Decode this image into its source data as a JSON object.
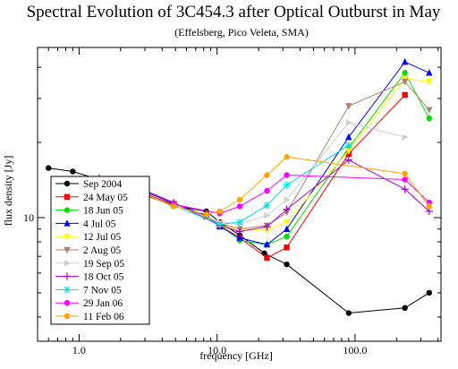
{
  "chart_data": {
    "type": "line",
    "title": "Spectral Evolution of 3C454.3 after Optical Outburst in May",
    "subtitle": "(Effelsberg, Pico Veleta, SMA)",
    "xlabel": "frequency [GHz]",
    "ylabel": "flux density [Jy]",
    "x_scale": "log",
    "y_scale": "log",
    "xlim": [
      0.5,
      420
    ],
    "ylim": [
      3.2,
      48
    ],
    "x_ticks": [
      {
        "value": 1.0,
        "label": "1.0"
      },
      {
        "value": 10.0,
        "label": "10.0"
      },
      {
        "value": 100.0,
        "label": "100.0"
      }
    ],
    "y_ticks": [
      {
        "value": 10,
        "label": "10"
      }
    ],
    "grid": false,
    "legend_position": "bottom-left",
    "series": [
      {
        "name": "Sep 2004",
        "color": "#000000",
        "marker": "circle",
        "points": [
          [
            0.6,
            15.8
          ],
          [
            0.9,
            15.3
          ],
          [
            1.4,
            14.2
          ],
          [
            1.6,
            13.4
          ],
          [
            2.6,
            12.6
          ],
          [
            4.85,
            11.2
          ],
          [
            8.35,
            10.6
          ],
          [
            10.45,
            9.6
          ],
          [
            14.6,
            8.5
          ],
          [
            22,
            7.2
          ],
          [
            32,
            6.5
          ],
          [
            90,
            4.15
          ],
          [
            230,
            4.35
          ],
          [
            345,
            5.0
          ]
        ]
      },
      {
        "name": "24 May 05",
        "color": "#ff0000",
        "marker": "square",
        "points": [
          [
            1.4,
            14.3
          ],
          [
            1.65,
            13.7
          ],
          [
            2.65,
            12.8
          ],
          [
            4.85,
            11.3
          ],
          [
            8.35,
            10.1
          ],
          [
            10.45,
            9.3
          ],
          [
            14.6,
            8.3
          ],
          [
            23,
            6.9
          ],
          [
            32,
            7.6
          ],
          [
            90,
            18.0
          ],
          [
            230,
            31.0
          ]
        ]
      },
      {
        "name": "18 Jun 05",
        "color": "#00dd00",
        "marker": "circle",
        "points": [
          [
            4.85,
            11.3
          ],
          [
            8.35,
            10.2
          ],
          [
            10.45,
            9.4
          ],
          [
            14.6,
            8.1
          ],
          [
            23,
            7.8
          ],
          [
            32,
            8.4
          ],
          [
            90,
            19.0
          ],
          [
            230,
            38.0
          ],
          [
            345,
            25.0
          ]
        ]
      },
      {
        "name": "4 Jul 05",
        "color": "#0000ff",
        "marker": "triangle-up",
        "points": [
          [
            1.4,
            14.1
          ],
          [
            2.65,
            13.1
          ],
          [
            4.85,
            11.4
          ],
          [
            8.35,
            10.2
          ],
          [
            10.45,
            9.2
          ],
          [
            14.6,
            8.3
          ],
          [
            23,
            7.8
          ],
          [
            32,
            9.0
          ],
          [
            90,
            21.0
          ],
          [
            230,
            42.0
          ],
          [
            345,
            38.0
          ]
        ]
      },
      {
        "name": "12 Jul 05",
        "color": "#ffff00",
        "marker": "triangle-down",
        "points": [
          [
            4.85,
            11.4
          ],
          [
            10.45,
            9.3
          ],
          [
            14.6,
            9.0
          ],
          [
            23,
            8.9
          ],
          [
            32,
            9.6
          ],
          [
            90,
            18.5
          ],
          [
            230,
            36.0
          ],
          [
            345,
            35.0
          ]
        ]
      },
      {
        "name": "2 Aug 05",
        "color": "#b08070",
        "marker": "triangle-down",
        "points": [
          [
            4.85,
            11.4
          ],
          [
            10.45,
            9.5
          ],
          [
            14.6,
            9.0
          ],
          [
            23,
            9.3
          ],
          [
            32,
            10.5
          ],
          [
            90,
            28.0
          ],
          [
            230,
            35.0
          ],
          [
            345,
            27.0
          ]
        ]
      },
      {
        "name": "19 Sep 05",
        "color": "#d0d0d0",
        "marker": "triangle-right",
        "points": [
          [
            4.85,
            11.3
          ],
          [
            10.45,
            9.6
          ],
          [
            14.6,
            9.4
          ],
          [
            23,
            10.2
          ],
          [
            32,
            11.8
          ],
          [
            90,
            24.0
          ],
          [
            230,
            21.0
          ]
        ]
      },
      {
        "name": "18 Oct 05",
        "color": "#aa00cc",
        "marker": "plus",
        "points": [
          [
            1.4,
            14.4
          ],
          [
            2.65,
            13.2
          ],
          [
            4.85,
            11.5
          ],
          [
            10.45,
            9.3
          ],
          [
            14.6,
            8.8
          ],
          [
            23,
            9.2
          ],
          [
            32,
            10.8
          ],
          [
            90,
            17.0
          ],
          [
            230,
            13.0
          ],
          [
            345,
            10.6
          ]
        ]
      },
      {
        "name": "7 Nov 05",
        "color": "#00e0e0",
        "marker": "star",
        "points": [
          [
            4.85,
            11.2
          ],
          [
            10.45,
            9.4
          ],
          [
            14.6,
            9.6
          ],
          [
            23,
            11.2
          ],
          [
            32,
            13.5
          ],
          [
            90,
            19.5
          ]
        ]
      },
      {
        "name": "29 Jan 06",
        "color": "#ff00ff",
        "marker": "circle",
        "points": [
          [
            4.85,
            11.3
          ],
          [
            10.45,
            10.4
          ],
          [
            14.6,
            11.1
          ],
          [
            23,
            12.8
          ],
          [
            32,
            14.8
          ],
          [
            230,
            14.2
          ],
          [
            345,
            11.5
          ]
        ]
      },
      {
        "name": "11 Feb 06",
        "color": "#ffa500",
        "marker": "circle",
        "points": [
          [
            2.65,
            12.7
          ],
          [
            4.85,
            11.1
          ],
          [
            8.35,
            10.3
          ],
          [
            10.45,
            10.6
          ],
          [
            14.6,
            11.8
          ],
          [
            23,
            14.8
          ],
          [
            32,
            17.5
          ],
          [
            230,
            15.0
          ],
          [
            345,
            11.1
          ]
        ]
      }
    ]
  }
}
